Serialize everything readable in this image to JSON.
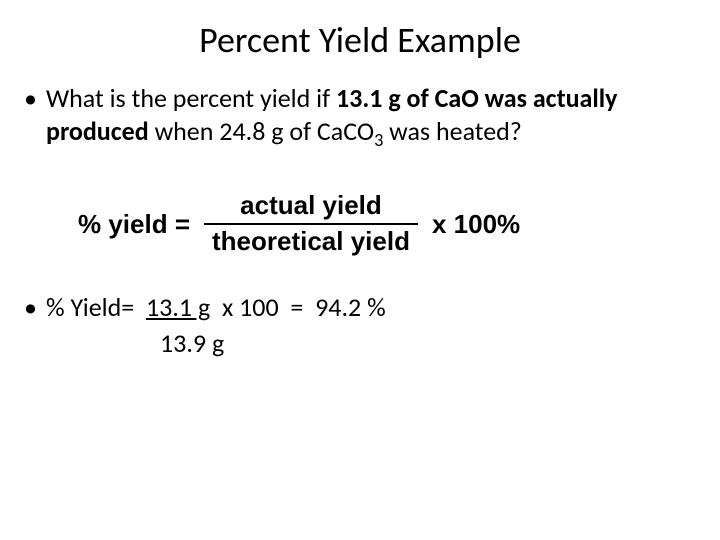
{
  "title": "Percent Yield Example",
  "question": {
    "prefix": "What is the percent yield if ",
    "bold_part": "13.1 g of CaO was actually produced",
    "mid": " when 24.8 g of CaCO",
    "subscript": "3",
    "suffix": " was heated?"
  },
  "formula": {
    "lhs": "% yield =",
    "numerator": "actual yield",
    "denominator": "theoretical yield",
    "rhs": "x 100%"
  },
  "calculation": {
    "label": "% Yield=",
    "numerator": "13.1 g",
    "times": "x 100",
    "equals": "=",
    "result": "94.2 %",
    "denominator": "13.9 g"
  },
  "styling": {
    "background_color": "#ffffff",
    "text_color": "#000000",
    "title_fontsize": 36,
    "body_fontsize": 26,
    "formula_fontsize": 26,
    "formula_fontweight": 700,
    "font_family_body": "Calibri",
    "font_family_formula": "Arial"
  }
}
